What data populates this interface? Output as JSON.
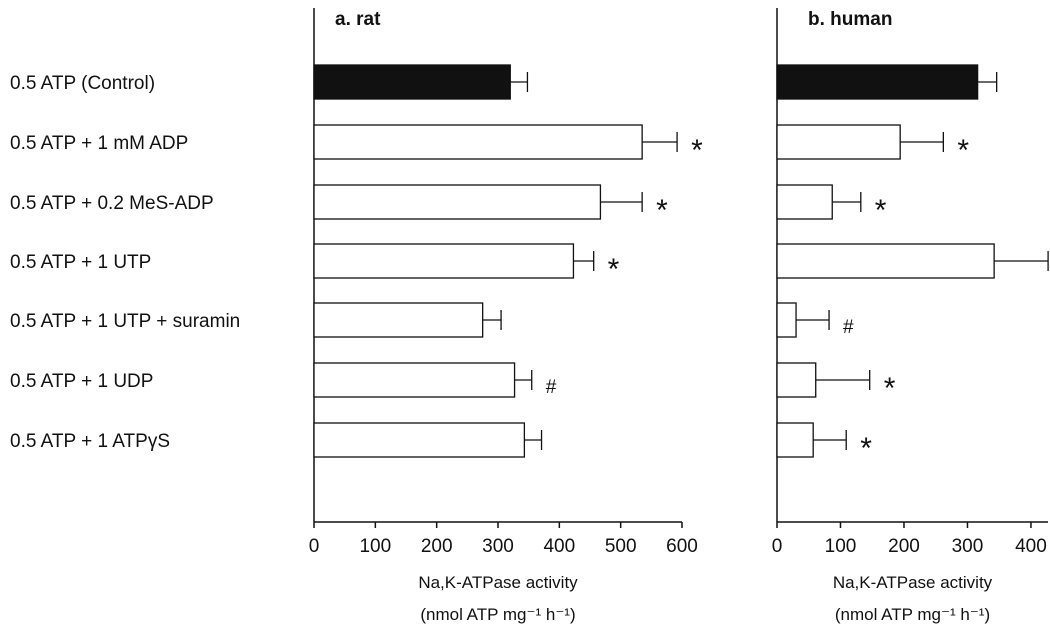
{
  "chart_data": [
    {
      "type": "bar",
      "orientation": "horizontal",
      "title": "a. rat",
      "categories": [
        "0.5 ATP (Control)",
        "0.5 ATP + 1 mM ADP",
        "0.5 ATP + 0.2 MeS-ADP",
        "0.5 ATP + 1 UTP",
        "0.5 ATP + 1 UTP + suramin",
        "0.5 ATP + 1 UDP",
        "0.5 ATP + 1 ATPγS"
      ],
      "values": [
        320,
        535,
        467,
        423,
        275,
        327,
        343
      ],
      "errors": [
        28,
        57,
        68,
        33,
        30,
        28,
        28
      ],
      "markers": [
        "",
        "*",
        "*",
        "*",
        "",
        "#",
        ""
      ],
      "fills": [
        "#111111",
        "#ffffff",
        "#ffffff",
        "#ffffff",
        "#ffffff",
        "#ffffff",
        "#ffffff"
      ],
      "xlim": [
        0,
        600
      ],
      "xticks": [
        0,
        100,
        200,
        300,
        400,
        500,
        600
      ],
      "xlabel_line1": "Na,K-ATPase activity",
      "xlabel_line2": "(nmol ATP mg⁻¹ h⁻¹)",
      "grid": false
    },
    {
      "type": "bar",
      "orientation": "horizontal",
      "title": "b. human",
      "categories": [
        "0.5 ATP (Control)",
        "0.5 ATP + 1 mM ADP",
        "0.5 ATP + 0.2 MeS-ADP",
        "0.5 ATP + 1 UTP",
        "0.5 ATP + 1 UTP + suramin",
        "0.5 ATP + 1 UDP",
        "0.5 ATP + 1 ATPγS"
      ],
      "values": [
        316,
        194,
        87,
        342,
        30,
        61,
        57
      ],
      "errors": [
        30,
        68,
        45,
        85,
        52,
        85,
        52
      ],
      "markers": [
        "",
        "*",
        "*",
        "",
        "#",
        "*",
        "*"
      ],
      "fills": [
        "#111111",
        "#ffffff",
        "#ffffff",
        "#ffffff",
        "#ffffff",
        "#ffffff",
        "#ffffff"
      ],
      "xlim": [
        0,
        430
      ],
      "xticks": [
        0,
        100,
        200,
        300,
        400
      ],
      "xlabel_line1": "Na,K-ATPase activity",
      "xlabel_line2": "(nmol ATP mg⁻¹ h⁻¹)",
      "grid": false
    }
  ]
}
